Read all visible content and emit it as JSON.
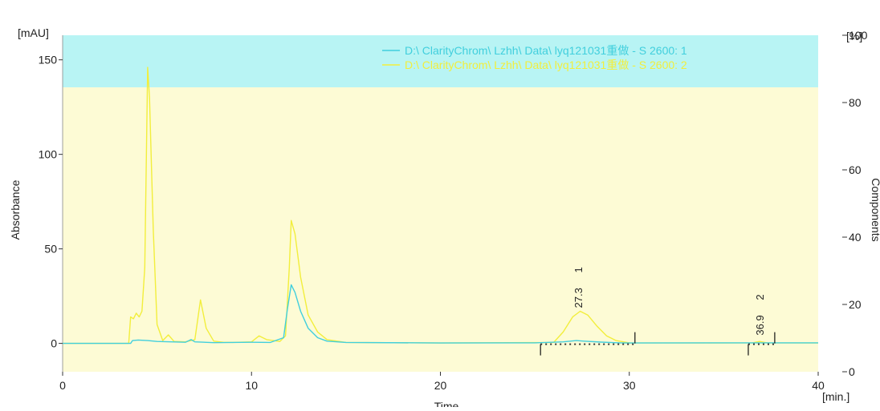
{
  "chart_data": {
    "type": "line",
    "xlabel": "Time",
    "x_unit": "[min.]",
    "ylabel": "Absorbance",
    "y_unit": "[mAU]",
    "y2label": "Components",
    "y2_unit": "[%]",
    "xlim": [
      0,
      40
    ],
    "ylim": [
      -15,
      163
    ],
    "y2lim": [
      0,
      100
    ],
    "x_ticks": [
      0,
      10,
      20,
      30,
      40
    ],
    "y_ticks": [
      0,
      50,
      100,
      150
    ],
    "y2_ticks": [
      0,
      20,
      40,
      60,
      80,
      100
    ],
    "y2_top_label": "100",
    "legend_placement": "top-center",
    "legend_background": "#b8f4f4",
    "plot_background": "#fdfbd5",
    "series": [
      {
        "name": "D:\\ ClarityChrom\\ Lzhh\\ Data\\ lyq121031重做 - S 2600: 1",
        "color": "#41cfdd",
        "x": [
          0,
          3.6,
          3.7,
          4.0,
          4.5,
          5.0,
          6.5,
          6.8,
          7.0,
          8.0,
          9.0,
          10.0,
          11.0,
          11.7,
          11.9,
          12.1,
          12.3,
          12.6,
          13.0,
          13.5,
          14.0,
          15.0,
          20.0,
          25.0,
          26.5,
          27.2,
          27.6,
          28.5,
          29.5,
          30.0,
          35.0,
          40.0
        ],
        "y": [
          0,
          0,
          1.5,
          1.8,
          1.5,
          1.0,
          0.6,
          2.0,
          0.8,
          0.4,
          0.5,
          0.6,
          0.5,
          3.0,
          18,
          31,
          27,
          17,
          8,
          3,
          1.2,
          0.5,
          0.2,
          0.3,
          0.8,
          1.5,
          1.2,
          0.7,
          0.3,
          0.2,
          0.3,
          0.3
        ]
      },
      {
        "name": "D:\\ ClarityChrom\\ Lzhh\\ Data\\ lyq121031重做 - S 2600: 2",
        "color": "#f2ee3c",
        "x": [
          0,
          3.5,
          3.6,
          3.75,
          3.9,
          4.05,
          4.2,
          4.35,
          4.5,
          4.6,
          4.8,
          5.0,
          5.3,
          5.6,
          5.9,
          6.5,
          7.0,
          7.3,
          7.6,
          8.0,
          8.5,
          9.0,
          10.0,
          10.4,
          10.8,
          11.5,
          11.8,
          12.0,
          12.1,
          12.3,
          12.6,
          13.0,
          13.5,
          14.0,
          15.0,
          20.0,
          26.0,
          26.5,
          27.0,
          27.4,
          27.8,
          28.3,
          28.8,
          29.3,
          30.0,
          35.0,
          36.5,
          36.9,
          37.3,
          40.0
        ],
        "y": [
          0,
          0,
          14,
          13,
          16,
          14,
          17,
          40,
          146,
          130,
          60,
          10,
          1.5,
          4.5,
          1,
          0.8,
          2,
          23,
          8,
          1.2,
          0.6,
          0.5,
          0.8,
          4,
          2,
          1.0,
          4,
          40,
          65,
          58,
          35,
          15,
          6,
          2,
          0.5,
          0.2,
          0.5,
          6,
          14,
          17,
          15,
          9,
          4,
          1.5,
          0.3,
          0.2,
          0.3,
          1.0,
          0.3,
          0.2
        ]
      }
    ],
    "peaks": [
      {
        "id": "1",
        "retention": "27.3",
        "x": 27.3,
        "y": 17
      },
      {
        "id": "2",
        "retention": "36.9",
        "x": 36.9,
        "y": 1.0
      }
    ],
    "integration_markers": [
      25.3,
      30.3,
      36.3,
      37.7
    ]
  }
}
